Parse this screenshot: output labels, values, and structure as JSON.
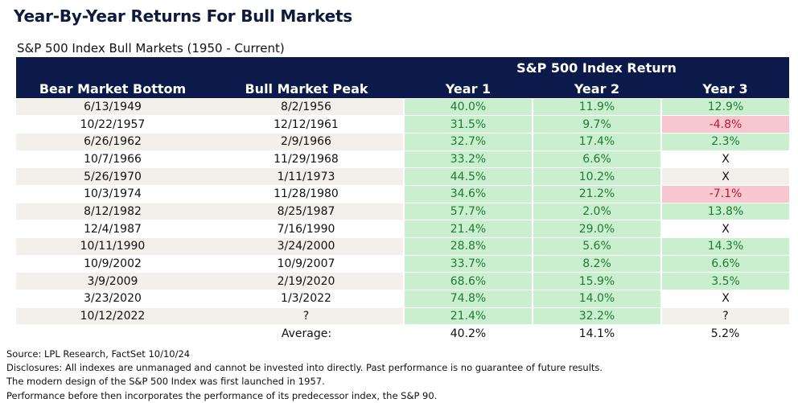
{
  "title": "Year-By-Year Returns For Bull Markets",
  "subtitle": "S&P 500 Index Bull Markets (1950 - Current)",
  "chart_data": {
    "type": "table",
    "group_header": "S&P 500 Index Return",
    "columns": [
      "Bear Market Bottom",
      "Bull Market Peak",
      "Year 1",
      "Year 2",
      "Year 3"
    ],
    "rows": [
      {
        "bottom": "6/13/1949",
        "peak": "8/2/1956",
        "y1": "40.0%",
        "y2": "11.9%",
        "y3": "12.9%"
      },
      {
        "bottom": "10/22/1957",
        "peak": "12/12/1961",
        "y1": "31.5%",
        "y2": "9.7%",
        "y3": "-4.8%"
      },
      {
        "bottom": "6/26/1962",
        "peak": "2/9/1966",
        "y1": "32.7%",
        "y2": "17.4%",
        "y3": "2.3%"
      },
      {
        "bottom": "10/7/1966",
        "peak": "11/29/1968",
        "y1": "33.2%",
        "y2": "6.6%",
        "y3": "X"
      },
      {
        "bottom": "5/26/1970",
        "peak": "1/11/1973",
        "y1": "44.5%",
        "y2": "10.2%",
        "y3": "X"
      },
      {
        "bottom": "10/3/1974",
        "peak": "11/28/1980",
        "y1": "34.6%",
        "y2": "21.2%",
        "y3": "-7.1%"
      },
      {
        "bottom": "8/12/1982",
        "peak": "8/25/1987",
        "y1": "57.7%",
        "y2": "2.0%",
        "y3": "13.8%"
      },
      {
        "bottom": "12/4/1987",
        "peak": "7/16/1990",
        "y1": "21.4%",
        "y2": "29.0%",
        "y3": "X"
      },
      {
        "bottom": "10/11/1990",
        "peak": "3/24/2000",
        "y1": "28.8%",
        "y2": "5.6%",
        "y3": "14.3%"
      },
      {
        "bottom": "10/9/2002",
        "peak": "10/9/2007",
        "y1": "33.7%",
        "y2": "8.2%",
        "y3": "6.6%"
      },
      {
        "bottom": "3/9/2009",
        "peak": "2/19/2020",
        "y1": "68.6%",
        "y2": "15.9%",
        "y3": "3.5%"
      },
      {
        "bottom": "3/23/2020",
        "peak": "1/3/2022",
        "y1": "74.8%",
        "y2": "14.0%",
        "y3": "X"
      },
      {
        "bottom": "10/12/2022",
        "peak": "?",
        "y1": "21.4%",
        "y2": "32.2%",
        "y3": "?"
      }
    ],
    "average": {
      "label": "Average:",
      "y1": "40.2%",
      "y2": "14.1%",
      "y3": "5.2%"
    }
  },
  "footer": [
    "Source: LPL Research, FactSet 10/10/24",
    "Disclosures: All indexes are unmanaged and cannot be invested into directly. Past performance is no guarantee of future results.",
    "The modern design of the S&P 500 Index was first launched in 1957.",
    "Performance before then incorporates the performance of its predecessor index, the S&P 90."
  ],
  "colors": {
    "header_bg": "#0b1a4a",
    "positive_bg": "#c9efcf",
    "positive_text": "#1f7a33",
    "negative_bg": "#f8c6cf",
    "negative_text": "#c0152f"
  }
}
